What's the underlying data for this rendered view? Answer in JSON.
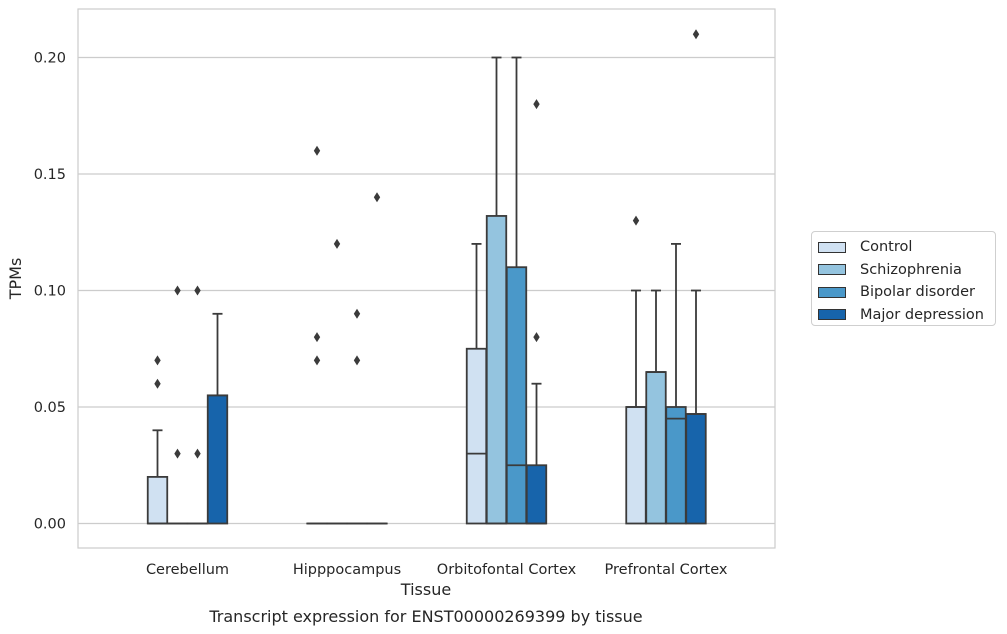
{
  "chart_data": {
    "type": "box",
    "xlabel": "Tissue",
    "ylabel": "TPMs",
    "caption": "Transcript expression for ENST00000269399 by tissue",
    "categories": [
      "Cerebellum",
      "Hipppocampus",
      "Orbitofontal Cortex",
      "Prefrontal Cortex"
    ],
    "ylim": [
      -0.01,
      0.22
    ],
    "yticks": [
      0.0,
      0.05,
      0.1,
      0.15,
      0.2
    ],
    "ytick_labels": [
      "0.00",
      "0.05",
      "0.10",
      "0.15",
      "0.20"
    ],
    "grid": "horizontal",
    "legend_position": "right",
    "series": [
      {
        "name": "Control",
        "color": "#d0e1f2",
        "boxes": [
          {
            "q1": 0.0,
            "median": 0.0,
            "q3": 0.02,
            "whisker_low": 0.0,
            "whisker_high": 0.04,
            "outliers": [
              0.06,
              0.07
            ]
          },
          {
            "q1": 0.0,
            "median": 0.0,
            "q3": 0.0,
            "whisker_low": 0.0,
            "whisker_high": 0.0,
            "outliers": [
              0.07,
              0.08,
              0.16
            ]
          },
          {
            "q1": 0.0,
            "median": 0.03,
            "q3": 0.075,
            "whisker_low": 0.0,
            "whisker_high": 0.12,
            "outliers": []
          },
          {
            "q1": 0.0,
            "median": 0.05,
            "q3": 0.05,
            "whisker_low": 0.0,
            "whisker_high": 0.1,
            "outliers": [
              0.13
            ]
          }
        ]
      },
      {
        "name": "Schizophrenia",
        "color": "#94c4df",
        "boxes": [
          {
            "q1": 0.0,
            "median": 0.0,
            "q3": 0.0,
            "whisker_low": 0.0,
            "whisker_high": 0.0,
            "outliers": [
              0.03,
              0.1
            ]
          },
          {
            "q1": 0.0,
            "median": 0.0,
            "q3": 0.0,
            "whisker_low": 0.0,
            "whisker_high": 0.0,
            "outliers": [
              0.12
            ]
          },
          {
            "q1": 0.0,
            "median": 0.0,
            "q3": 0.132,
            "whisker_low": 0.0,
            "whisker_high": 0.2,
            "outliers": []
          },
          {
            "q1": 0.0,
            "median": 0.065,
            "q3": 0.065,
            "whisker_low": 0.0,
            "whisker_high": 0.1,
            "outliers": []
          }
        ]
      },
      {
        "name": "Bipolar disorder",
        "color": "#4a98c9",
        "boxes": [
          {
            "q1": 0.0,
            "median": 0.0,
            "q3": 0.0,
            "whisker_low": 0.0,
            "whisker_high": 0.0,
            "outliers": [
              0.03,
              0.1
            ]
          },
          {
            "q1": 0.0,
            "median": 0.0,
            "q3": 0.0,
            "whisker_low": 0.0,
            "whisker_high": 0.0,
            "outliers": [
              0.07,
              0.09
            ]
          },
          {
            "q1": 0.0,
            "median": 0.025,
            "q3": 0.11,
            "whisker_low": 0.0,
            "whisker_high": 0.2,
            "outliers": []
          },
          {
            "q1": 0.0,
            "median": 0.045,
            "q3": 0.05,
            "whisker_low": 0.0,
            "whisker_high": 0.12,
            "outliers": []
          }
        ]
      },
      {
        "name": "Major depression",
        "color": "#1764ab",
        "boxes": [
          {
            "q1": 0.0,
            "median": 0.055,
            "q3": 0.055,
            "whisker_low": 0.0,
            "whisker_high": 0.09,
            "outliers": []
          },
          {
            "q1": 0.0,
            "median": 0.0,
            "q3": 0.0,
            "whisker_low": 0.0,
            "whisker_high": 0.0,
            "outliers": [
              0.14
            ]
          },
          {
            "q1": 0.0,
            "median": 0.0,
            "q3": 0.025,
            "whisker_low": 0.0,
            "whisker_high": 0.06,
            "outliers": [
              0.08,
              0.18
            ]
          },
          {
            "q1": 0.0,
            "median": 0.047,
            "q3": 0.047,
            "whisker_low": 0.0,
            "whisker_high": 0.1,
            "outliers": [
              0.21
            ]
          }
        ]
      }
    ]
  }
}
